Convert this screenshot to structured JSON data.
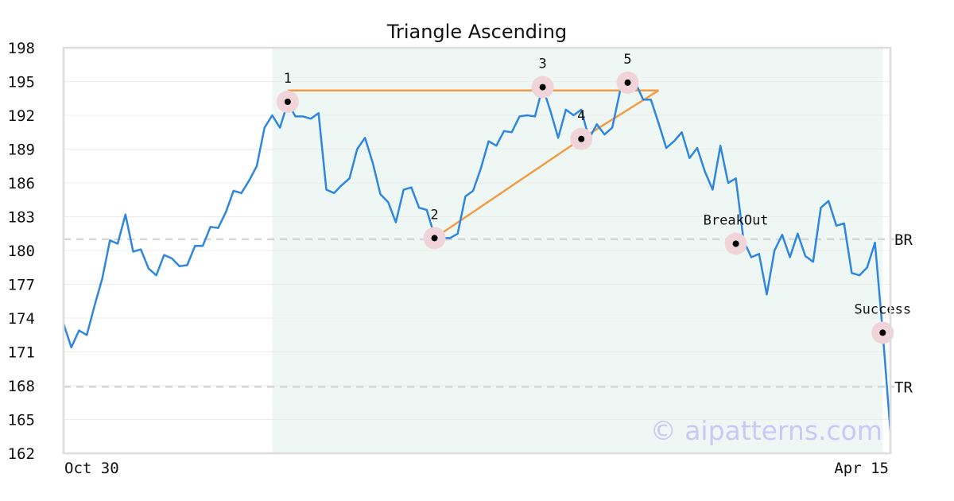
{
  "chart_data": {
    "type": "line",
    "title": "Triangle Ascending",
    "x_start_label": "Oct 30",
    "x_end_label": "Apr 15",
    "ylim": [
      162,
      198
    ],
    "yticks": [
      198,
      195,
      192,
      189,
      186,
      183,
      180,
      177,
      174,
      171,
      168,
      165,
      162
    ],
    "grid": "horizontal",
    "pattern_range": [
      27,
      106
    ],
    "series": [
      {
        "values": [
          173.5,
          171.4,
          172.9,
          172.5,
          175.1,
          177.5,
          180.9,
          180.6,
          183.2,
          179.9,
          180.1,
          178.4,
          177.8,
          179.6,
          179.3,
          178.6,
          178.7,
          180.4,
          180.4,
          182.1,
          182.0,
          183.4,
          185.3,
          185.1,
          186.2,
          187.5,
          190.9,
          192.0,
          190.9,
          193.1,
          191.9,
          191.9,
          191.7,
          192.2,
          185.4,
          185.1,
          185.8,
          186.4,
          189.0,
          190.0,
          187.8,
          185.0,
          184.3,
          182.5,
          185.4,
          185.6,
          183.8,
          183.6,
          181.3,
          181.1,
          181.1,
          181.5,
          184.8,
          185.3,
          187.3,
          189.7,
          189.3,
          190.6,
          190.5,
          191.9,
          192.0,
          191.9,
          194.5,
          192.4,
          190.0,
          192.5,
          192.0,
          192.5,
          189.9,
          191.2,
          190.3,
          190.9,
          194.1,
          195.3,
          194.9,
          193.4,
          193.4,
          191.3,
          189.1,
          189.7,
          190.5,
          188.2,
          189.1,
          187.0,
          185.4,
          189.3,
          186.0,
          186.4,
          180.9,
          179.4,
          179.7,
          176.1,
          180.0,
          181.4,
          179.4,
          181.5,
          179.5,
          179.0,
          183.8,
          184.4,
          182.2,
          182.4,
          178.0,
          177.8,
          178.5,
          180.7,
          172.8,
          163.9
        ]
      }
    ],
    "horizontal_lines": [
      {
        "label": "BR",
        "value": 181.0
      },
      {
        "label": "TR",
        "value": 167.9
      }
    ],
    "resistance_line": {
      "x": [
        29,
        77
      ],
      "y": [
        194.2,
        194.2
      ]
    },
    "support_line": {
      "x": [
        48,
        67,
        77
      ],
      "y": [
        181.1,
        189.9,
        194.2
      ]
    },
    "points": [
      {
        "label": "1",
        "x": 29,
        "y": 193.2
      },
      {
        "label": "2",
        "x": 48,
        "y": 181.1
      },
      {
        "label": "3",
        "x": 62,
        "y": 194.5
      },
      {
        "label": "4",
        "x": 67,
        "y": 189.9
      },
      {
        "label": "5",
        "x": 73,
        "y": 194.9
      },
      {
        "label": "BreakOut",
        "x": 87,
        "y": 180.6
      },
      {
        "label": "Success",
        "x": 106,
        "y": 172.7
      }
    ],
    "colors": {
      "line": "#2e86de",
      "pattern_line": "#f39c45",
      "shade": "#eef7f3",
      "marker_halo": "#f0d4da",
      "dashed": "#d6d6d6"
    }
  },
  "watermark": "© aipatterns.com"
}
